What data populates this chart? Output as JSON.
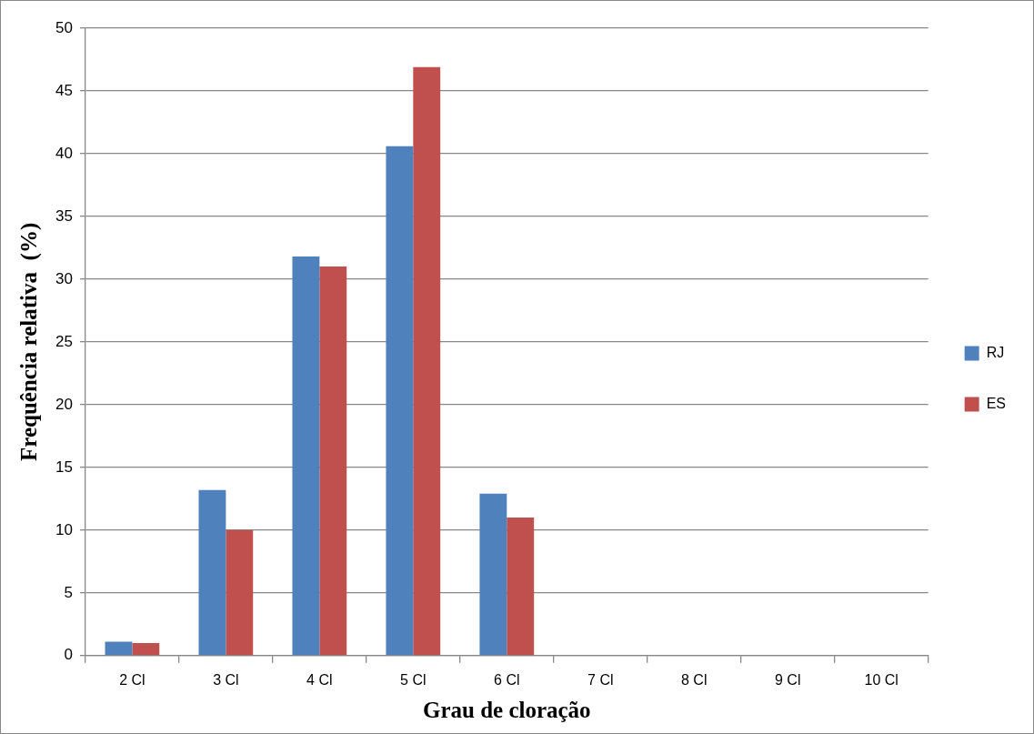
{
  "chart_data": {
    "type": "bar",
    "xlabel": "Grau de cloração",
    "ylabel": "Frequência relativa  (%)",
    "categories": [
      "2 Cl",
      "3 Cl",
      "4 Cl",
      "5 Cl",
      "6 Cl",
      "7 Cl",
      "8 Cl",
      "9 Cl",
      "10 Cl"
    ],
    "series": [
      {
        "name": "RJ",
        "color": "#4f81bd",
        "values": [
          1.1,
          13.2,
          31.8,
          40.6,
          12.9,
          0,
          0,
          0,
          0
        ]
      },
      {
        "name": "ES",
        "color": "#c0504d",
        "values": [
          1.0,
          10.0,
          31.0,
          46.9,
          11.0,
          0,
          0,
          0,
          0
        ]
      }
    ],
    "ylim": [
      0,
      50
    ],
    "yticks": [
      0,
      5,
      10,
      15,
      20,
      25,
      30,
      35,
      40,
      45,
      50
    ],
    "grid": "y",
    "legend": "right"
  }
}
